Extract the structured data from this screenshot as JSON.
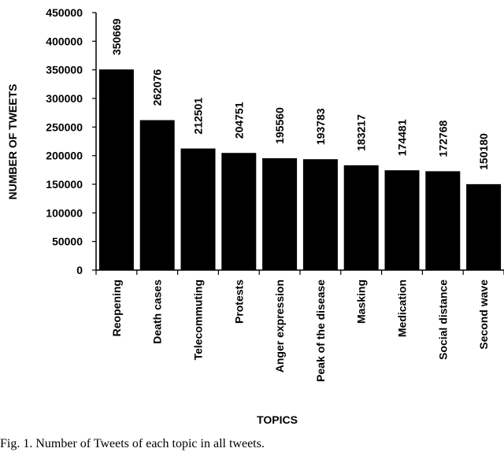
{
  "chart_data": {
    "type": "bar",
    "title": "",
    "xlabel": "TOPICS",
    "ylabel": "NUMBER OF TWEETS",
    "ylim": [
      0,
      450000
    ],
    "yticks": [
      0,
      50000,
      100000,
      150000,
      200000,
      250000,
      300000,
      350000,
      400000,
      450000
    ],
    "categories": [
      "Reopening",
      "Death cases",
      "Telecommuting",
      "Protests",
      "Anger expression",
      "Peak of the disease",
      "Masking",
      "Medication",
      "Social distance",
      "Second wave"
    ],
    "values": [
      350669,
      262076,
      212501,
      204751,
      195560,
      193783,
      183217,
      174481,
      172768,
      150180
    ],
    "bar_color": "#000000",
    "grid": false,
    "legend": "none"
  },
  "caption": "Fig. 1.   Number of Tweets of each topic in all tweets."
}
